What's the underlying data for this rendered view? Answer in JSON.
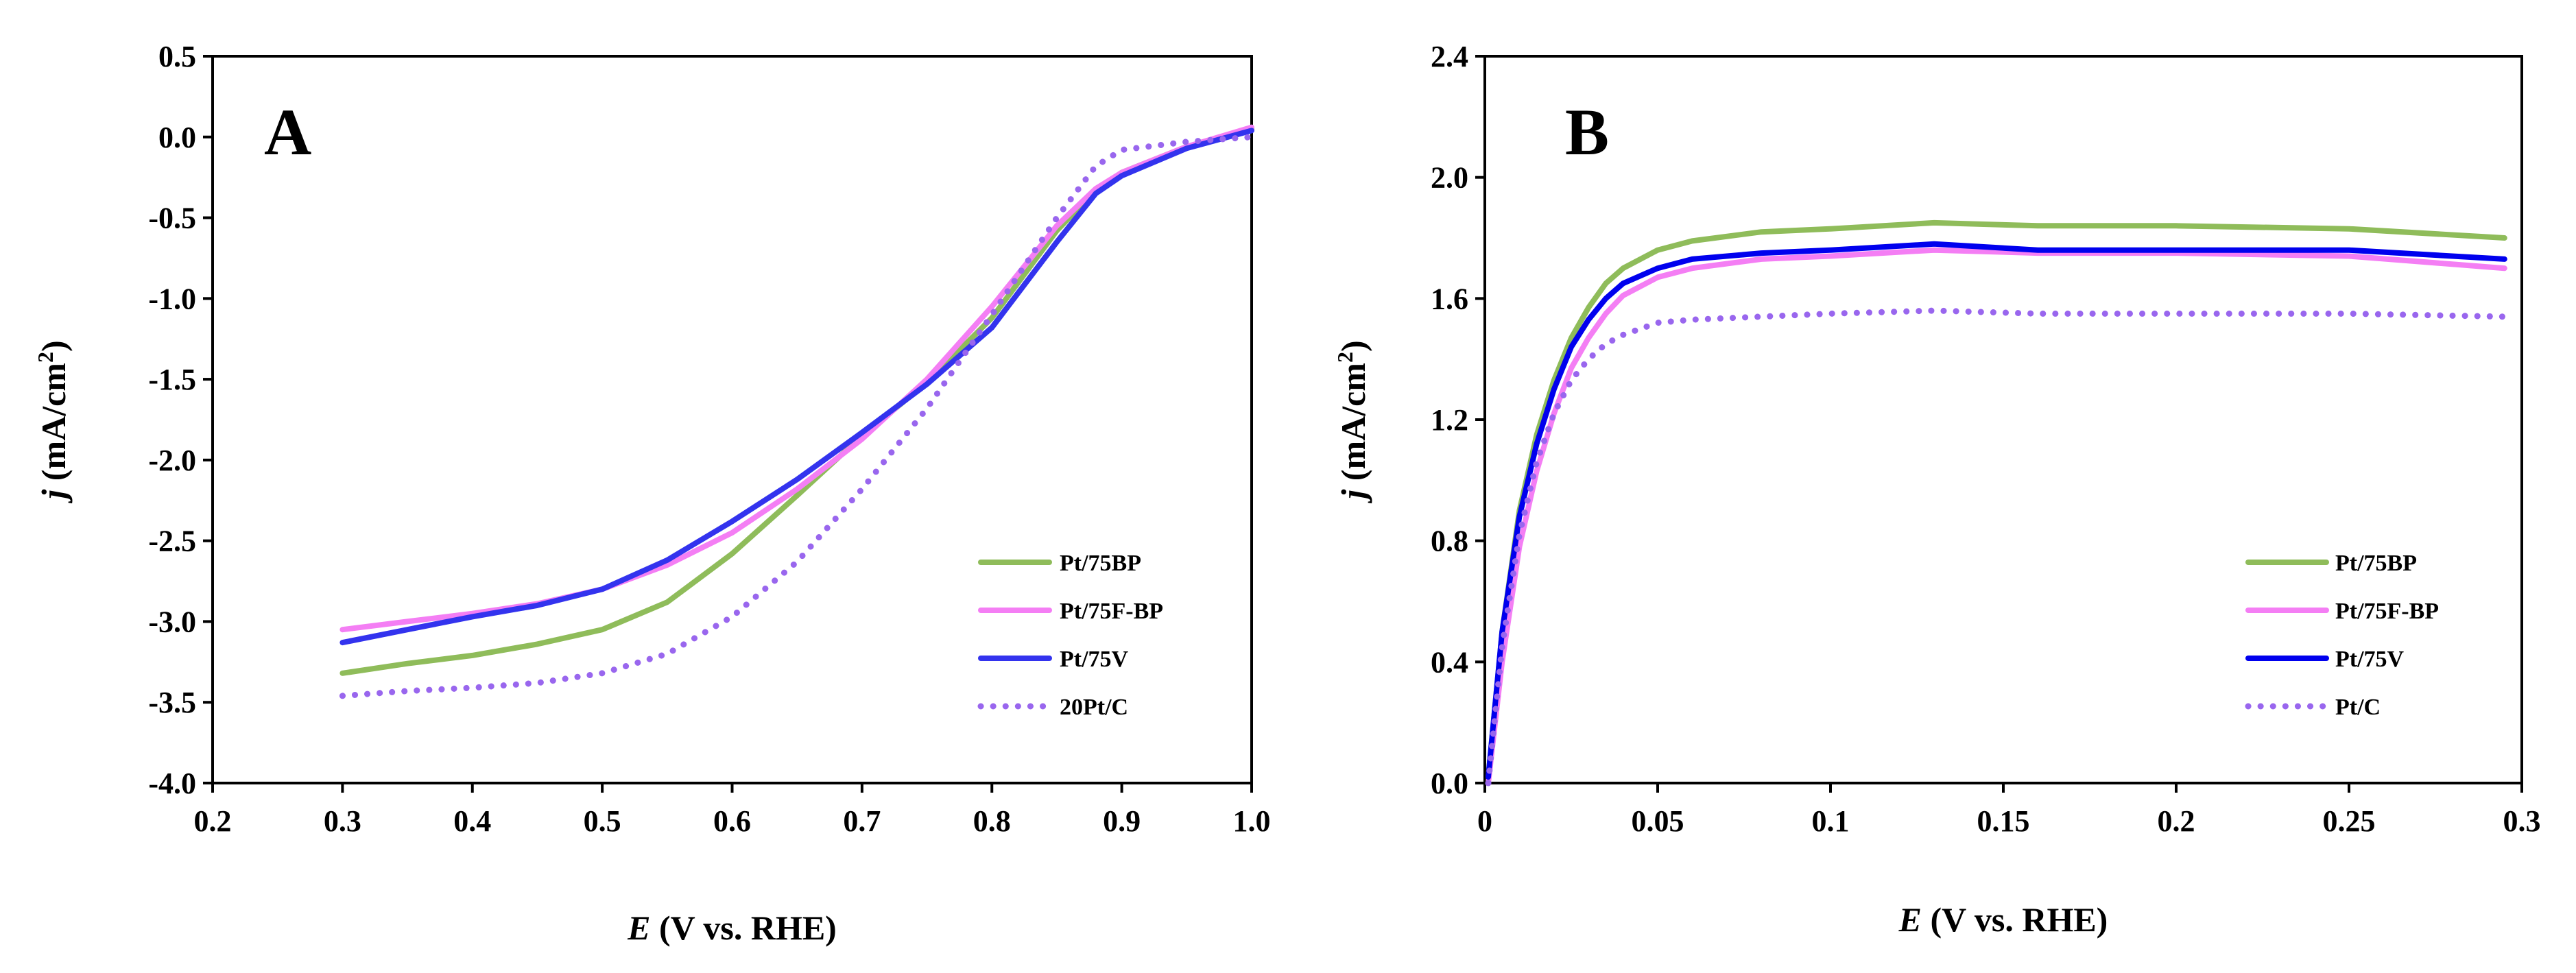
{
  "chart_data": [
    {
      "type": "line",
      "panel_label": "A",
      "xlabel_italic": "E",
      "xlabel_rest": " (V vs. RHE)",
      "ylabel_italic": "j",
      "ylabel_rest": " (mA/cm",
      "ylabel_sup": "2",
      "ylabel_close": ")",
      "xlim": [
        0.2,
        1.0
      ],
      "ylim": [
        -4.0,
        0.5
      ],
      "xticks": [
        "0.2",
        "0.3",
        "0.4",
        "0.5",
        "0.6",
        "0.7",
        "0.8",
        "0.9",
        "1.0"
      ],
      "yticks": [
        "0.5",
        "0.0",
        "-0.5",
        "-1.0",
        "-1.5",
        "-2.0",
        "-2.5",
        "-3.0",
        "-3.5",
        "-4.0"
      ],
      "legend_position": "lower-right",
      "series": [
        {
          "name": "Pt/75BP",
          "color": "#8fbc5a",
          "style": "solid",
          "x": [
            0.3,
            0.35,
            0.4,
            0.45,
            0.5,
            0.55,
            0.6,
            0.65,
            0.7,
            0.75,
            0.8,
            0.85,
            0.88,
            0.9,
            0.95,
            1.0
          ],
          "y": [
            -3.32,
            -3.26,
            -3.21,
            -3.14,
            -3.05,
            -2.88,
            -2.58,
            -2.22,
            -1.85,
            -1.52,
            -1.12,
            -0.58,
            -0.33,
            -0.22,
            -0.06,
            0.05
          ]
        },
        {
          "name": "Pt/75F-BP",
          "color": "#f47ef4",
          "style": "solid",
          "x": [
            0.3,
            0.35,
            0.4,
            0.45,
            0.5,
            0.55,
            0.6,
            0.65,
            0.7,
            0.75,
            0.8,
            0.85,
            0.88,
            0.9,
            0.95,
            1.0
          ],
          "y": [
            -3.05,
            -3.0,
            -2.95,
            -2.89,
            -2.8,
            -2.65,
            -2.45,
            -2.18,
            -1.87,
            -1.5,
            -1.05,
            -0.55,
            -0.32,
            -0.22,
            -0.06,
            0.06
          ]
        },
        {
          "name": "Pt/75V",
          "color": "#3333ee",
          "style": "solid",
          "x": [
            0.3,
            0.35,
            0.4,
            0.45,
            0.5,
            0.55,
            0.6,
            0.65,
            0.7,
            0.75,
            0.8,
            0.85,
            0.88,
            0.9,
            0.95,
            1.0
          ],
          "y": [
            -3.13,
            -3.05,
            -2.97,
            -2.9,
            -2.8,
            -2.62,
            -2.38,
            -2.12,
            -1.83,
            -1.53,
            -1.18,
            -0.65,
            -0.35,
            -0.24,
            -0.07,
            0.04
          ]
        },
        {
          "name": "20Pt/C",
          "color": "#9966ee",
          "style": "dotted",
          "x": [
            0.3,
            0.35,
            0.4,
            0.45,
            0.5,
            0.55,
            0.6,
            0.65,
            0.7,
            0.75,
            0.8,
            0.85,
            0.88,
            0.9,
            0.95,
            1.0
          ],
          "y": [
            -3.46,
            -3.43,
            -3.41,
            -3.38,
            -3.32,
            -3.2,
            -2.97,
            -2.63,
            -2.18,
            -1.68,
            -1.1,
            -0.5,
            -0.18,
            -0.08,
            -0.03,
            0.0
          ]
        }
      ]
    },
    {
      "type": "line",
      "panel_label": "B",
      "xlabel_italic": "E",
      "xlabel_rest": " (V vs. RHE)",
      "ylabel_italic": "j",
      "ylabel_rest": " (mA/cm",
      "ylabel_sup": "2",
      "ylabel_close": ")",
      "xlim": [
        0,
        0.3
      ],
      "ylim": [
        0.0,
        2.4
      ],
      "xticks": [
        "0",
        "0.05",
        "0.1",
        "0.15",
        "0.2",
        "0.25",
        "0.3"
      ],
      "yticks": [
        "2.4",
        "2.0",
        "1.6",
        "1.2",
        "0.8",
        "0.4",
        "0.0"
      ],
      "legend_position": "lower-right",
      "series": [
        {
          "name": "Pt/75BP",
          "color": "#8fbc5a",
          "style": "solid",
          "x": [
            0.001,
            0.005,
            0.01,
            0.015,
            0.02,
            0.025,
            0.03,
            0.035,
            0.04,
            0.05,
            0.06,
            0.08,
            0.1,
            0.13,
            0.16,
            0.2,
            0.25,
            0.295
          ],
          "y": [
            0.02,
            0.5,
            0.9,
            1.15,
            1.33,
            1.47,
            1.57,
            1.65,
            1.7,
            1.76,
            1.79,
            1.82,
            1.83,
            1.85,
            1.84,
            1.84,
            1.83,
            1.8
          ]
        },
        {
          "name": "Pt/75F-BP",
          "color": "#f47ef4",
          "style": "solid",
          "x": [
            0.001,
            0.005,
            0.01,
            0.015,
            0.02,
            0.025,
            0.03,
            0.035,
            0.04,
            0.05,
            0.06,
            0.08,
            0.1,
            0.13,
            0.16,
            0.2,
            0.25,
            0.295
          ],
          "y": [
            0.0,
            0.4,
            0.78,
            1.03,
            1.22,
            1.37,
            1.47,
            1.55,
            1.61,
            1.67,
            1.7,
            1.73,
            1.74,
            1.76,
            1.75,
            1.75,
            1.74,
            1.7
          ]
        },
        {
          "name": "Pt/75V",
          "color": "#0000ee",
          "style": "solid",
          "x": [
            0.001,
            0.005,
            0.01,
            0.015,
            0.02,
            0.025,
            0.03,
            0.035,
            0.04,
            0.05,
            0.06,
            0.08,
            0.1,
            0.13,
            0.16,
            0.2,
            0.25,
            0.295
          ],
          "y": [
            0.02,
            0.5,
            0.88,
            1.12,
            1.3,
            1.44,
            1.53,
            1.6,
            1.65,
            1.7,
            1.73,
            1.75,
            1.76,
            1.78,
            1.76,
            1.76,
            1.76,
            1.73
          ]
        },
        {
          "name": "Pt/C",
          "color": "#9966ee",
          "style": "dotted",
          "x": [
            0.001,
            0.005,
            0.01,
            0.015,
            0.02,
            0.025,
            0.03,
            0.035,
            0.04,
            0.05,
            0.06,
            0.08,
            0.1,
            0.13,
            0.16,
            0.2,
            0.25,
            0.295
          ],
          "y": [
            0.0,
            0.45,
            0.82,
            1.06,
            1.22,
            1.33,
            1.4,
            1.45,
            1.48,
            1.52,
            1.53,
            1.54,
            1.55,
            1.56,
            1.55,
            1.55,
            1.55,
            1.54
          ]
        }
      ]
    }
  ]
}
